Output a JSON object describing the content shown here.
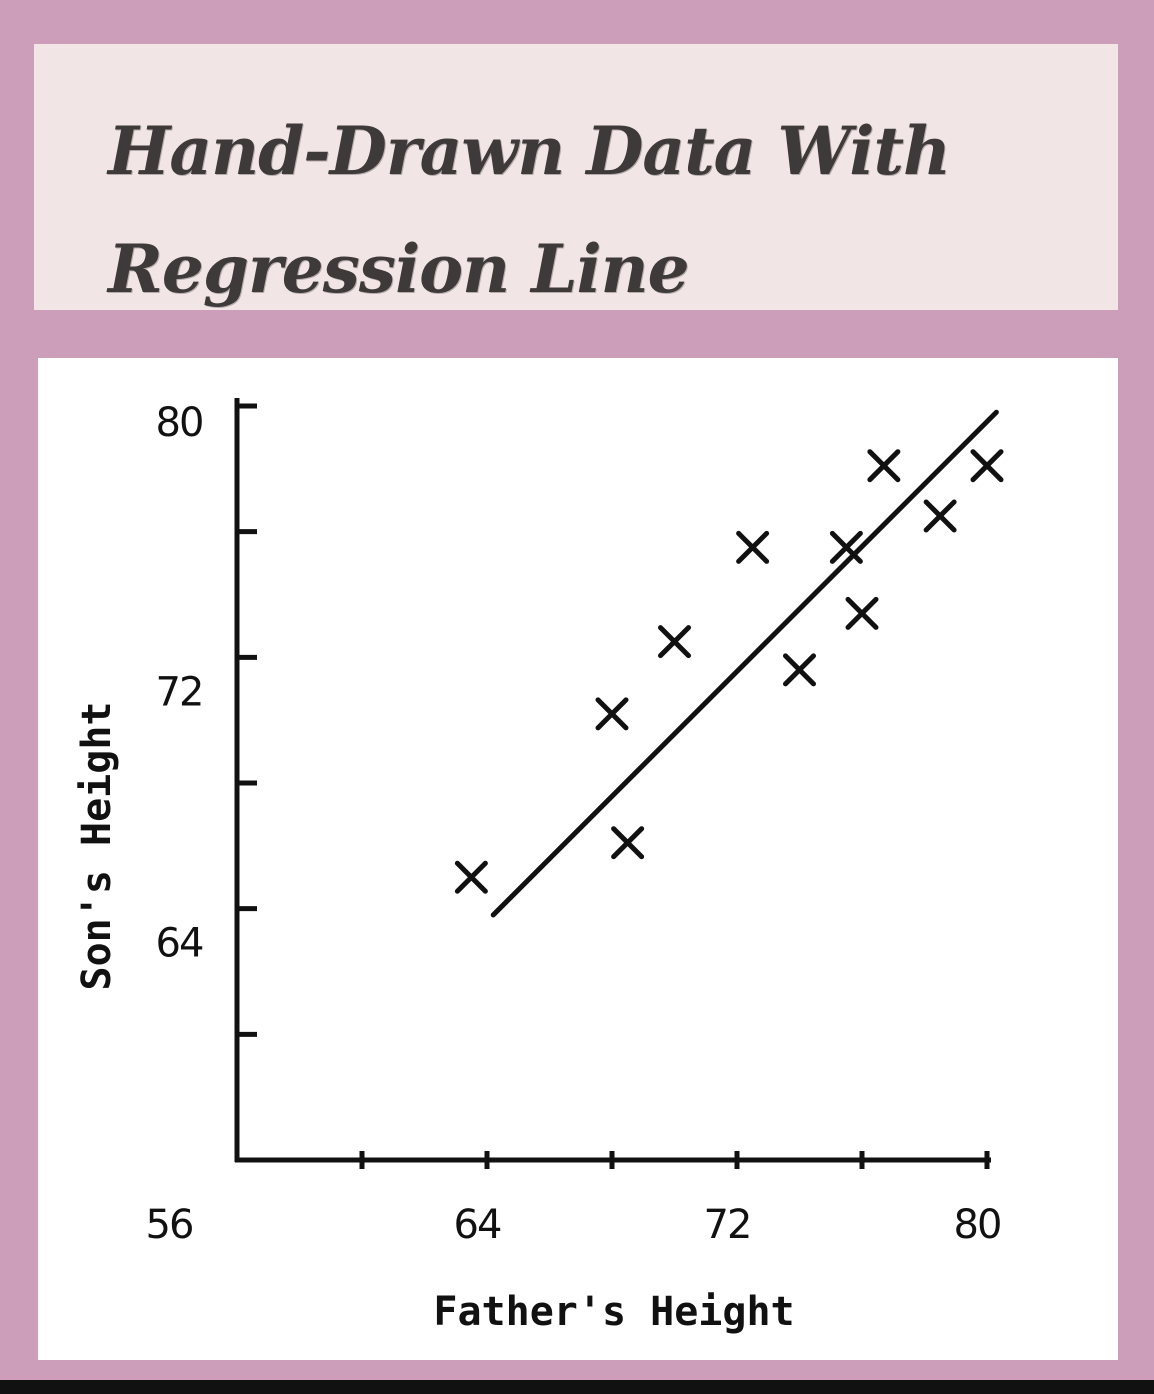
{
  "title": {
    "line1": "Hand-Drawn Data With",
    "line2": "Regression Line"
  },
  "colors": {
    "background": "#cc9eb9",
    "title_box": "#f2e5e5",
    "plot_area": "#ffffff",
    "ink": "#111111"
  },
  "chart_data": {
    "type": "scatter",
    "title": "Hand-Drawn Data With Regression Line",
    "xlabel": "Father's Height",
    "ylabel": "Son's Height",
    "xlim": [
      56,
      80
    ],
    "ylim": [
      56,
      80
    ],
    "x_tick_values": [
      56,
      60,
      64,
      68,
      72,
      76,
      80
    ],
    "x_tick_labels": [
      "56",
      "64",
      "72",
      "80"
    ],
    "y_tick_values": [
      60,
      64,
      68,
      72,
      76,
      80
    ],
    "y_tick_labels": [
      "64",
      "72",
      "80"
    ],
    "marker": "x",
    "grid": false,
    "legend": "none",
    "points": [
      {
        "x": 63.5,
        "y": 65.0
      },
      {
        "x": 68.0,
        "y": 70.2
      },
      {
        "x": 68.5,
        "y": 66.1
      },
      {
        "x": 70.0,
        "y": 72.5
      },
      {
        "x": 72.5,
        "y": 75.5
      },
      {
        "x": 74.0,
        "y": 71.6
      },
      {
        "x": 75.5,
        "y": 75.5
      },
      {
        "x": 76.0,
        "y": 73.4
      },
      {
        "x": 76.7,
        "y": 78.1
      },
      {
        "x": 78.5,
        "y": 76.5
      },
      {
        "x": 80.0,
        "y": 78.1
      }
    ],
    "regression_line": {
      "x1": 64.2,
      "y1": 63.8,
      "x2": 80.3,
      "y2": 79.8
    }
  }
}
